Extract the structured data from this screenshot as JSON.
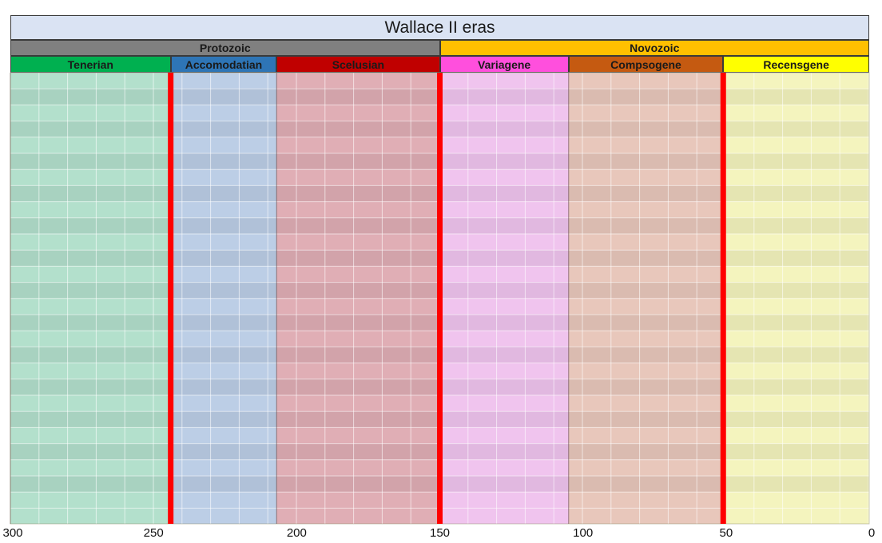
{
  "title": "Wallace II eras",
  "eras": [
    {
      "label": "Protozoic",
      "start": 300,
      "end": 150,
      "color": "#808080"
    },
    {
      "label": "Novozoic",
      "start": 150,
      "end": 0,
      "color": "#ffc000"
    }
  ],
  "periods": [
    {
      "label": "Tenerian",
      "start": 300,
      "end": 244,
      "color": "#00b050",
      "fill": "#b3e0cc"
    },
    {
      "label": "Accomodatian",
      "start": 244,
      "end": 207,
      "color": "#2e75b6",
      "fill": "#bccee6"
    },
    {
      "label": "Scelusian",
      "start": 207,
      "end": 150,
      "color": "#c00000",
      "fill": "#e0aeb5"
    },
    {
      "label": "Variagene",
      "start": 150,
      "end": 105,
      "color": "#ff4fdd",
      "fill": "#f0c4ee"
    },
    {
      "label": "Compsogene",
      "start": 105,
      "end": 51,
      "color": "#c55a11",
      "fill": "#e8c7bb"
    },
    {
      "label": "Recensgene",
      "start": 51,
      "end": 0,
      "color": "#ffff00",
      "fill": "#f4f4be"
    }
  ],
  "boundaries": [
    244,
    150,
    51
  ],
  "boundary_color": "#ff0000",
  "axis": {
    "min": 300,
    "max": 0,
    "ticks": [
      300,
      250,
      200,
      150,
      100,
      50,
      0
    ]
  }
}
